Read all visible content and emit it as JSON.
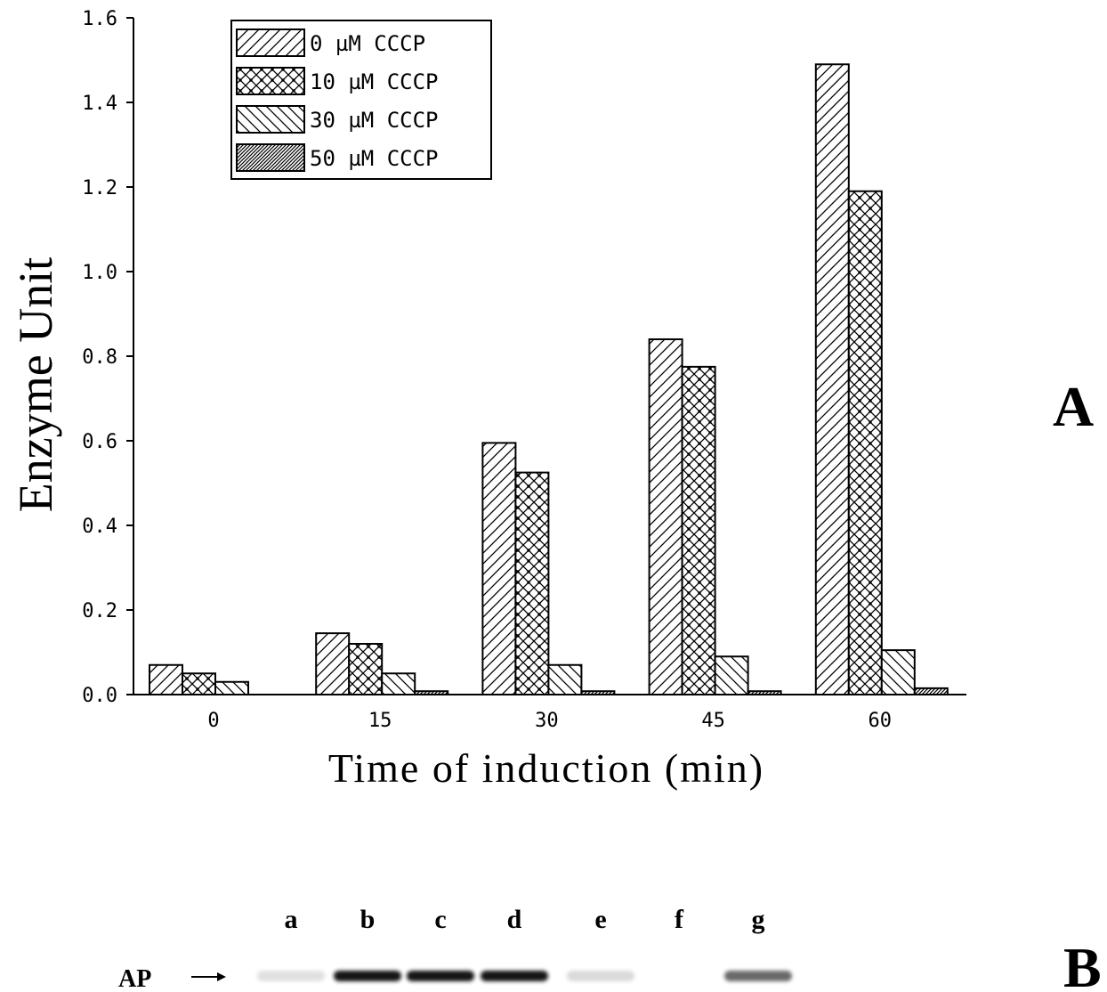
{
  "chart_data": {
    "type": "bar",
    "ylabel": "Enzyme Unit",
    "xlabel": "Time of induction (min)",
    "categories": [
      "0",
      "15",
      "30",
      "45",
      "60"
    ],
    "ylim": [
      0,
      1.6
    ],
    "yticks": [
      "0.0",
      "0.2",
      "0.4",
      "0.6",
      "0.8",
      "1.0",
      "1.2",
      "1.4",
      "1.6"
    ],
    "legend_position": "top-left",
    "grid": false,
    "series": [
      {
        "name": "0 µM CCCP",
        "values": [
          0.07,
          0.145,
          0.595,
          0.84,
          1.49
        ]
      },
      {
        "name": "10 µM CCCP",
        "values": [
          0.05,
          0.12,
          0.525,
          0.775,
          1.19
        ]
      },
      {
        "name": "30 µM CCCP",
        "values": [
          0.03,
          0.05,
          0.07,
          0.09,
          0.105
        ]
      },
      {
        "name": "50 µM CCCP",
        "values": [
          0.0,
          0.008,
          0.008,
          0.008,
          0.015
        ]
      }
    ]
  },
  "panel_a_label": "A",
  "panel_b_label": "B",
  "gel": {
    "lanes": [
      "a",
      "b",
      "c",
      "d",
      "e",
      "f",
      "g"
    ],
    "band_label": "AP",
    "band_intensity": [
      0.05,
      1.0,
      1.0,
      1.0,
      0.08,
      0.0,
      0.6
    ]
  }
}
